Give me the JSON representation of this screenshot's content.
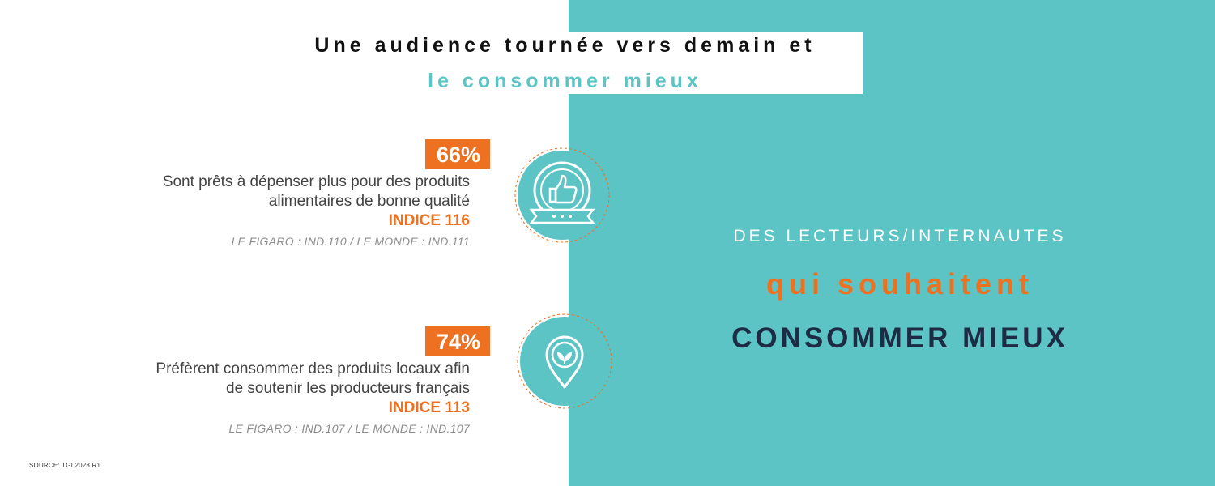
{
  "colors": {
    "teal": "#5cc4c4",
    "orange": "#ed7120",
    "navy": "#1d2b45",
    "white": "#ffffff"
  },
  "header": {
    "title_line1": "Une audience tournée vers demain et",
    "title_line2": "le consommer mieux"
  },
  "stats": [
    {
      "percent": "66%",
      "description_line1": "Sont prêts à dépenser plus pour des produits",
      "description_line2": "alimentaires de bonne qualité",
      "index": "INDICE 116",
      "comparison": "LE FIGARO : IND.110 / LE MONDE : IND.111",
      "icon": "thumbs-up-badge-icon"
    },
    {
      "percent": "74%",
      "description_line1": "Préfèrent consommer des produits locaux afin",
      "description_line2": "de soutenir les producteurs français",
      "index": "INDICE 113",
      "comparison": "LE FIGARO : IND.107 / LE MONDE : IND.107",
      "icon": "leaf-location-pin-icon"
    }
  ],
  "right_panel": {
    "line1": "DES LECTEURS/INTERNAUTES",
    "line2": "qui souhaitent",
    "line3": "CONSOMMER MIEUX"
  },
  "source": "SOURCE: TGI 2023 R1"
}
